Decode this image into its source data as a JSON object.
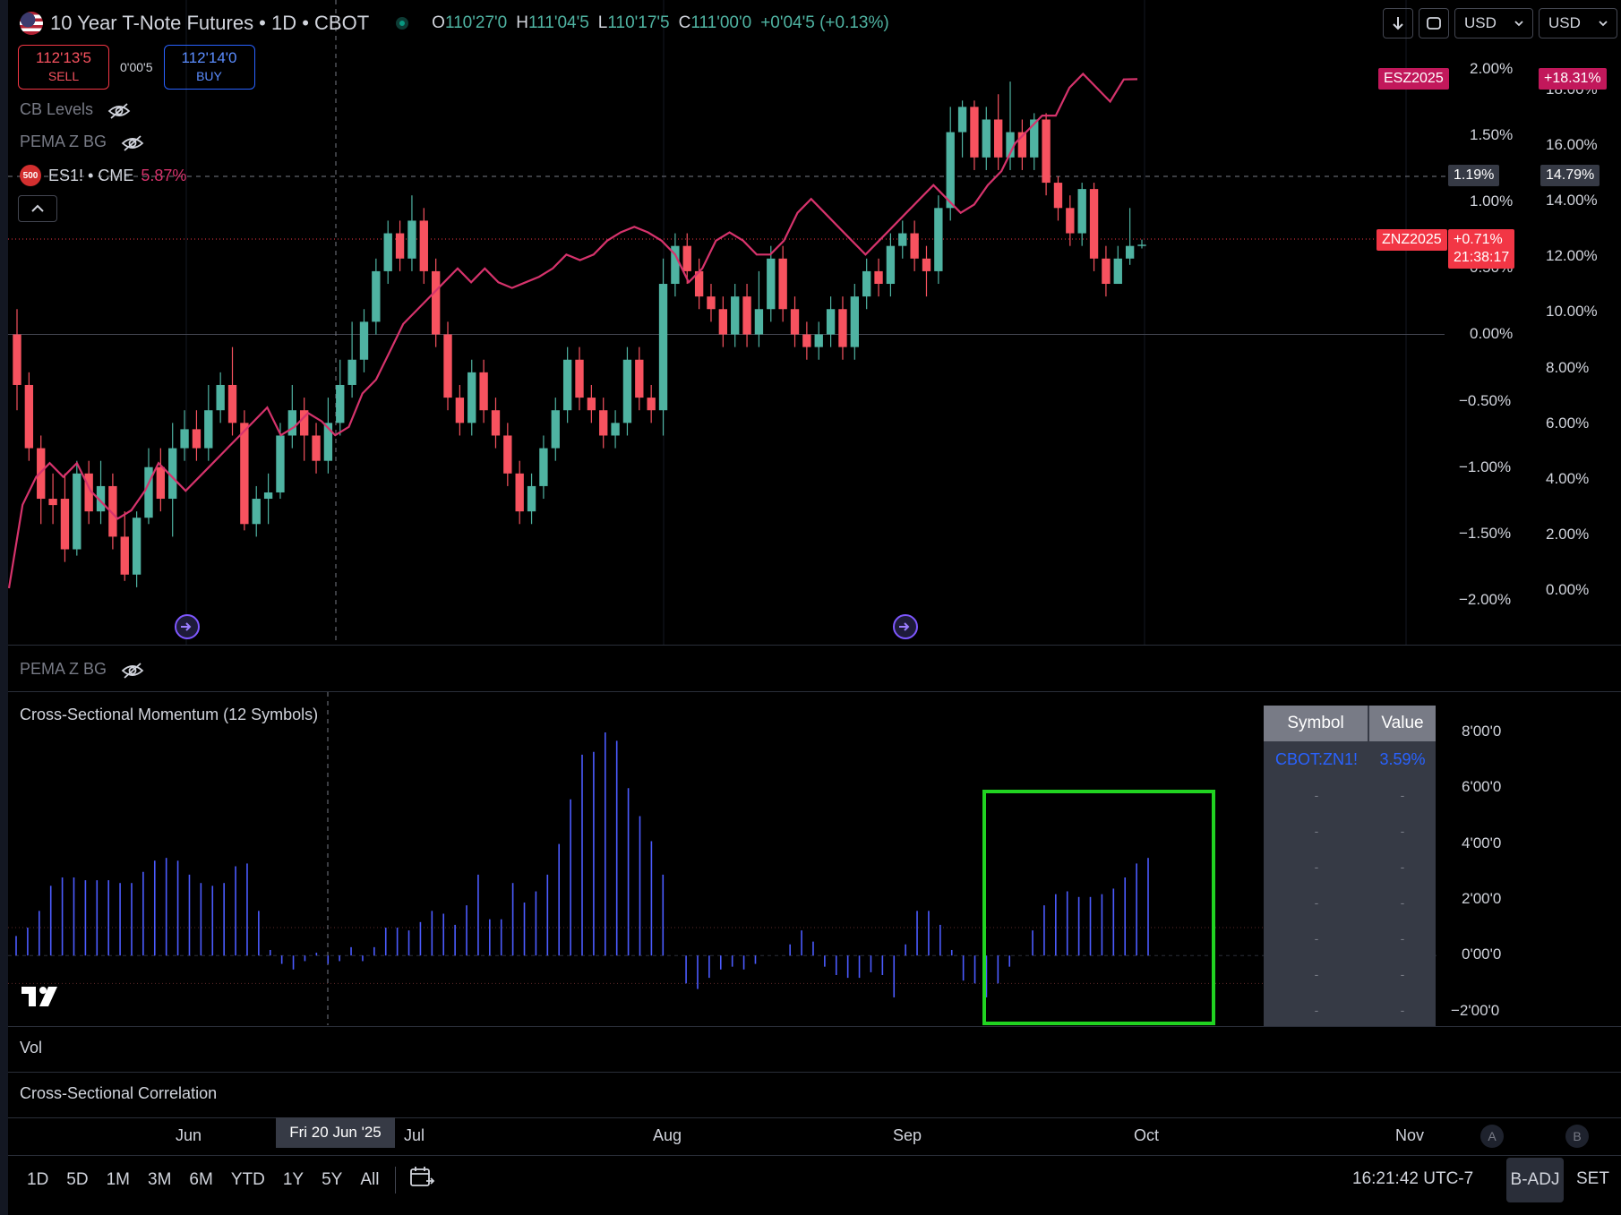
{
  "header": {
    "title": "10 Year T-Note Futures • 1D • CBOT",
    "ohlc": {
      "o_label": "O",
      "o_value": "110'27'0",
      "h_label": "H",
      "h_value": "111'04'5",
      "l_label": "L",
      "l_value": "110'17'5",
      "c_label": "C",
      "c_value": "111'00'0",
      "change": "+0'04'5 (+0.13%)"
    }
  },
  "trade": {
    "sell_price": "112'13'5",
    "sell_label": "SELL",
    "spread": "0'00'5",
    "buy_price": "112'14'0",
    "buy_label": "BUY"
  },
  "toolbar_right": {
    "currency1": "USD",
    "currency2": "USD"
  },
  "legend": {
    "cb_levels": "CB Levels",
    "pema_z_bg": "PEMA Z BG",
    "es_badge": "500",
    "es_symbol": "ES1! • CME",
    "es_value": "5.87%"
  },
  "main_axis": {
    "left_ticks": [
      "2.00%",
      "1.50%",
      "1.00%",
      "0.50%",
      "0.00%",
      "−0.50%",
      "−1.00%",
      "−1.50%",
      "−2.00%"
    ],
    "right_ticks": [
      "18.00%",
      "16.00%",
      "14.00%",
      "12.00%",
      "10.00%",
      "8.00%",
      "6.00%",
      "4.00%",
      "2.00%",
      "0.00%"
    ],
    "crosshair_left": "1.19%",
    "crosshair_right": "14.79%",
    "esz_label": "ESZ2025",
    "esz_value": "+18.31%",
    "znz_label": "ZNZ2025",
    "znz_value": "+0.71%",
    "znz_countdown": "21:38:17"
  },
  "panes": {
    "pema_title": "PEMA Z BG",
    "momentum_title": "Cross-Sectional Momentum (12 Symbols)",
    "vol_title": "Vol",
    "corr_title": "Cross-Sectional Correlation"
  },
  "momentum_axis": [
    "8'00'0",
    "6'00'0",
    "4'00'0",
    "2'00'0",
    "0'00'0",
    "−2'00'0"
  ],
  "table": {
    "col_symbol": "Symbol",
    "col_value": "Value",
    "rows": [
      {
        "symbol": "CBOT:ZN1!",
        "value": "3.59%"
      },
      {
        "symbol": "-",
        "value": "-"
      },
      {
        "symbol": "-",
        "value": "-"
      },
      {
        "symbol": "-",
        "value": "-"
      },
      {
        "symbol": "-",
        "value": "-"
      },
      {
        "symbol": "-",
        "value": "-"
      },
      {
        "symbol": "-",
        "value": "-"
      },
      {
        "symbol": "-",
        "value": "-"
      }
    ]
  },
  "time_axis": {
    "months": [
      "Jun",
      "Jul",
      "Aug",
      "Sep",
      "Oct",
      "Nov"
    ],
    "crosshair_date": "Fri 20 Jun '25",
    "a": "A",
    "b": "B"
  },
  "bottom": {
    "ranges": [
      "1D",
      "5D",
      "1M",
      "3M",
      "6M",
      "YTD",
      "1Y",
      "5Y",
      "All"
    ],
    "clock": "16:21:42 UTC-7",
    "badj": "B-ADJ",
    "set": "SET"
  },
  "colors": {
    "up": "#4fb3a2",
    "down": "#f7525f",
    "line": "#d6336c",
    "momentum": "#4b5bff",
    "highlight": "#21d321"
  },
  "chart_data": [
    {
      "type": "candlestick",
      "x_labels": [
        "Jun",
        "Jul",
        "Aug",
        "Sep",
        "Oct",
        "Nov"
      ],
      "ylim": [
        -2.1,
        2.1
      ],
      "candles": [
        [
          0.0,
          -0.4,
          0.2,
          -0.6
        ],
        [
          -0.4,
          -0.9,
          -0.3,
          -1.0
        ],
        [
          -0.9,
          -1.3,
          -0.8,
          -1.5
        ],
        [
          -1.3,
          -1.35,
          -1.1,
          -1.5
        ],
        [
          -1.3,
          -1.7,
          -1.1,
          -1.8
        ],
        [
          -1.7,
          -1.1,
          -1.0,
          -1.75
        ],
        [
          -1.1,
          -1.4,
          -1.0,
          -1.5
        ],
        [
          -1.4,
          -1.2,
          -1.0,
          -1.5
        ],
        [
          -1.2,
          -1.6,
          -1.1,
          -1.7
        ],
        [
          -1.6,
          -1.9,
          -1.4,
          -1.95
        ],
        [
          -1.9,
          -1.45,
          -1.4,
          -2.0
        ],
        [
          -1.45,
          -1.05,
          -0.9,
          -1.5
        ],
        [
          -1.05,
          -1.3,
          -0.9,
          -1.4
        ],
        [
          -1.3,
          -0.9,
          -0.7,
          -1.6
        ],
        [
          -0.9,
          -0.75,
          -0.6,
          -1.0
        ],
        [
          -0.75,
          -0.9,
          -0.6,
          -1.0
        ],
        [
          -0.9,
          -0.6,
          -0.4,
          -1.0
        ],
        [
          -0.6,
          -0.4,
          -0.3,
          -0.7
        ],
        [
          -0.4,
          -0.7,
          -0.1,
          -0.8
        ],
        [
          -0.7,
          -1.5,
          -0.6,
          -1.55
        ],
        [
          -1.5,
          -1.3,
          -1.2,
          -1.6
        ],
        [
          -1.3,
          -1.25,
          -1.1,
          -1.5
        ],
        [
          -1.25,
          -0.8,
          -0.7,
          -1.3
        ],
        [
          -0.8,
          -0.6,
          -0.4,
          -0.9
        ],
        [
          -0.6,
          -0.8,
          -0.5,
          -1.0
        ],
        [
          -0.8,
          -1.0,
          -0.7,
          -1.1
        ],
        [
          -1.0,
          -0.7,
          -0.5,
          -1.1
        ],
        [
          -0.7,
          -0.4,
          -0.2,
          -0.8
        ],
        [
          -0.4,
          -0.2,
          0.1,
          -0.5
        ],
        [
          -0.2,
          0.1,
          0.2,
          -0.3
        ],
        [
          0.1,
          0.5,
          0.6,
          0.0
        ],
        [
          0.5,
          0.8,
          0.9,
          0.4
        ],
        [
          0.8,
          0.6,
          0.9,
          0.5
        ],
        [
          0.6,
          0.9,
          1.1,
          0.5
        ],
        [
          0.9,
          0.5,
          1.0,
          0.4
        ],
        [
          0.5,
          0.0,
          0.6,
          -0.1
        ],
        [
          0.0,
          -0.5,
          0.1,
          -0.6
        ],
        [
          -0.5,
          -0.7,
          -0.4,
          -0.8
        ],
        [
          -0.7,
          -0.3,
          -0.2,
          -0.8
        ],
        [
          -0.3,
          -0.6,
          -0.2,
          -0.7
        ],
        [
          -0.6,
          -0.8,
          -0.5,
          -0.9
        ],
        [
          -0.8,
          -1.1,
          -0.7,
          -1.2
        ],
        [
          -1.1,
          -1.4,
          -1.0,
          -1.5
        ],
        [
          -1.4,
          -1.2,
          -1.1,
          -1.5
        ],
        [
          -1.2,
          -0.9,
          -0.8,
          -1.3
        ],
        [
          -0.9,
          -0.6,
          -0.5,
          -1.0
        ],
        [
          -0.6,
          -0.2,
          -0.1,
          -0.7
        ],
        [
          -0.2,
          -0.5,
          -0.1,
          -0.6
        ],
        [
          -0.5,
          -0.6,
          -0.4,
          -0.7
        ],
        [
          -0.6,
          -0.8,
          -0.5,
          -0.9
        ],
        [
          -0.8,
          -0.7,
          -0.6,
          -0.9
        ],
        [
          -0.7,
          -0.2,
          -0.1,
          -0.8
        ],
        [
          -0.2,
          -0.5,
          -0.1,
          -0.6
        ],
        [
          -0.5,
          -0.6,
          -0.4,
          -0.7
        ],
        [
          -0.6,
          0.4,
          0.6,
          -0.8
        ],
        [
          0.4,
          0.7,
          0.8,
          0.3
        ],
        [
          0.7,
          0.5,
          0.8,
          0.4
        ],
        [
          0.5,
          0.3,
          0.6,
          0.2
        ],
        [
          0.3,
          0.2,
          0.4,
          0.1
        ],
        [
          0.2,
          0.0,
          0.3,
          -0.1
        ],
        [
          0.0,
          0.3,
          0.4,
          -0.1
        ],
        [
          0.3,
          0.0,
          0.4,
          -0.1
        ],
        [
          0.0,
          0.2,
          0.5,
          -0.1
        ],
        [
          0.2,
          0.6,
          0.7,
          0.1
        ],
        [
          0.6,
          0.2,
          0.7,
          0.1
        ],
        [
          0.2,
          0.0,
          0.3,
          -0.1
        ],
        [
          0.0,
          -0.1,
          0.1,
          -0.2
        ],
        [
          -0.1,
          0.0,
          0.1,
          -0.2
        ],
        [
          0.0,
          0.2,
          0.3,
          -0.1
        ],
        [
          0.2,
          -0.1,
          0.3,
          -0.2
        ],
        [
          -0.1,
          0.3,
          0.4,
          -0.2
        ],
        [
          0.3,
          0.5,
          0.6,
          0.2
        ],
        [
          0.5,
          0.4,
          0.6,
          0.3
        ],
        [
          0.4,
          0.7,
          0.8,
          0.3
        ],
        [
          0.7,
          0.8,
          0.9,
          0.6
        ],
        [
          0.8,
          0.6,
          0.9,
          0.5
        ],
        [
          0.6,
          0.5,
          0.7,
          0.3
        ],
        [
          0.5,
          1.0,
          1.1,
          0.4
        ],
        [
          1.0,
          1.6,
          1.8,
          0.9
        ],
        [
          1.6,
          1.8,
          1.85,
          1.4
        ],
        [
          1.8,
          1.4,
          1.85,
          1.3
        ],
        [
          1.4,
          1.7,
          1.8,
          1.3
        ],
        [
          1.7,
          1.4,
          1.9,
          1.3
        ],
        [
          1.4,
          1.6,
          2.0,
          1.3
        ],
        [
          1.6,
          1.4,
          1.7,
          1.3
        ],
        [
          1.4,
          1.7,
          1.75,
          1.3
        ],
        [
          1.7,
          1.2,
          1.75,
          1.1
        ],
        [
          1.2,
          1.0,
          1.25,
          0.9
        ],
        [
          1.0,
          0.8,
          1.1,
          0.7
        ],
        [
          0.8,
          1.15,
          1.2,
          0.7
        ],
        [
          1.15,
          0.6,
          1.2,
          0.5
        ],
        [
          0.6,
          0.4,
          0.7,
          0.3
        ],
        [
          0.4,
          0.6,
          0.7,
          0.5
        ],
        [
          0.6,
          0.7,
          1.0,
          0.55
        ],
        [
          0.7,
          0.71,
          0.75,
          0.68
        ]
      ]
    },
    {
      "type": "line",
      "name": "ES1!",
      "ylim": [
        0,
        19
      ],
      "values": [
        0.0,
        3.0,
        4.0,
        4.5,
        4.0,
        4.5,
        3.5,
        3.0,
        2.5,
        2.8,
        3.5,
        4.5,
        4.0,
        3.5,
        4.0,
        4.5,
        5.0,
        5.5,
        6.0,
        6.5,
        5.5,
        5.8,
        6.3,
        6.0,
        5.5,
        5.8,
        7.0,
        7.5,
        8.5,
        9.5,
        10.0,
        10.5,
        11.0,
        11.5,
        11.0,
        11.5,
        11.0,
        10.8,
        11.0,
        11.2,
        11.5,
        12.0,
        11.8,
        12.0,
        12.5,
        12.8,
        13.0,
        12.8,
        12.5,
        12.0,
        11.0,
        11.5,
        12.5,
        12.8,
        12.5,
        12.0,
        12.0,
        12.5,
        13.5,
        14.0,
        13.5,
        13.0,
        12.5,
        12.0,
        12.5,
        13.0,
        13.5,
        14.0,
        14.5,
        14.0,
        13.5,
        13.8,
        14.5,
        15.0,
        16.0,
        16.5,
        17.0,
        17.0,
        18.0,
        18.5,
        18.0,
        17.5,
        18.3,
        18.31
      ],
      "last_value": 18.31
    },
    {
      "type": "bar",
      "name": "Cross-Sectional Momentum",
      "ylim": [
        -2.3,
        8.3
      ],
      "values": [
        0.7,
        1.0,
        1.6,
        2.5,
        2.8,
        2.8,
        2.7,
        2.7,
        2.7,
        2.6,
        2.6,
        3.0,
        3.4,
        3.5,
        3.4,
        2.9,
        2.6,
        2.5,
        2.6,
        3.2,
        3.3,
        1.6,
        0.2,
        -0.3,
        -0.5,
        -0.2,
        0.1,
        -0.3,
        -0.2,
        0.3,
        -0.2,
        0.3,
        1.0,
        1.0,
        0.9,
        1.2,
        1.6,
        1.5,
        1.1,
        1.8,
        2.9,
        1.3,
        1.3,
        2.6,
        1.9,
        2.3,
        2.9,
        4.0,
        5.6,
        7.2,
        7.3,
        8.0,
        7.7,
        6.0,
        5.0,
        4.1,
        2.9,
        0.0,
        -1.0,
        -1.2,
        -0.8,
        -0.5,
        -0.4,
        -0.5,
        -0.3,
        0.0,
        0.0,
        0.4,
        0.9,
        0.5,
        -0.4,
        -0.7,
        -0.8,
        -0.8,
        -0.6,
        -0.7,
        -1.5,
        0.4,
        1.6,
        1.6,
        1.1,
        0.2,
        -0.9,
        -1.0,
        -1.5,
        -1.0,
        -0.4,
        0.0,
        0.9,
        1.8,
        2.2,
        2.3,
        2.1,
        2.1,
        2.2,
        2.4,
        2.8,
        3.3,
        3.5
      ]
    }
  ]
}
